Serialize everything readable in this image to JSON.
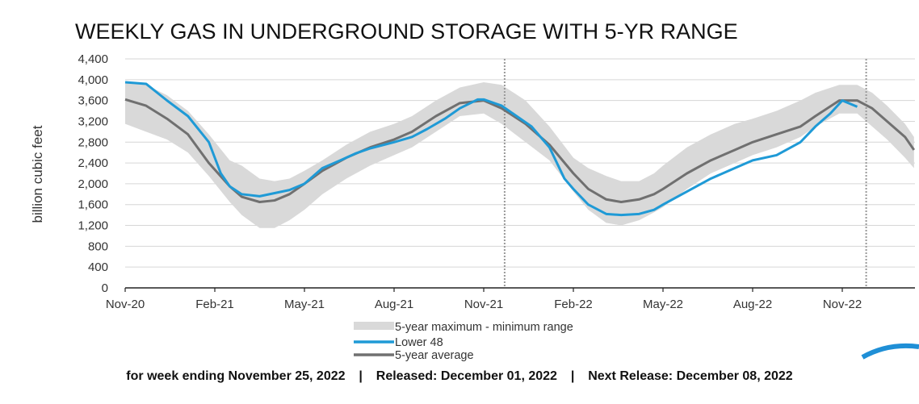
{
  "chart_data": {
    "type": "area",
    "title": "WEEKLY GAS IN UNDERGROUND STORAGE WITH 5-YR RANGE",
    "ylabel": "billion cubic feet",
    "xlabel": "",
    "x_unit": "months since Nov-20",
    "ylim": [
      0,
      4400
    ],
    "yticks": [
      "0",
      "400",
      "800",
      "1,200",
      "1,600",
      "2,000",
      "2,400",
      "2,800",
      "3,200",
      "3,600",
      "4,000",
      "4,400"
    ],
    "xticks": [
      {
        "m": 0,
        "label": "Nov-20"
      },
      {
        "m": 3,
        "label": "Feb-21"
      },
      {
        "m": 6,
        "label": "May-21"
      },
      {
        "m": 9,
        "label": "Aug-21"
      },
      {
        "m": 12,
        "label": "Nov-21"
      },
      {
        "m": 15,
        "label": "Feb-22"
      },
      {
        "m": 18,
        "label": "May-22"
      },
      {
        "m": 21,
        "label": "Aug-22"
      },
      {
        "m": 24,
        "label": "Nov-22"
      }
    ],
    "xlim": [
      0,
      26.4
    ],
    "grid": true,
    "reference_lines_m": [
      12.7,
      24.8
    ],
    "legend": {
      "placement": "bottom-center",
      "entries": [
        "5-year maximum - minimum range",
        "Lower 48",
        "5-year average"
      ]
    },
    "series": [
      {
        "name": "5-year maximum - minimum range",
        "kind": "band",
        "color": "#d9d9d9",
        "points": [
          [
            0,
            3150,
            3950
          ],
          [
            0.7,
            3000,
            3900
          ],
          [
            1.4,
            2850,
            3700
          ],
          [
            2.1,
            2600,
            3400
          ],
          [
            2.8,
            2150,
            2950
          ],
          [
            3.5,
            1650,
            2450
          ],
          [
            3.9,
            1400,
            2350
          ],
          [
            4.5,
            1150,
            2100
          ],
          [
            5.0,
            1150,
            2050
          ],
          [
            5.5,
            1300,
            2100
          ],
          [
            6.0,
            1500,
            2250
          ],
          [
            6.6,
            1800,
            2450
          ],
          [
            7.4,
            2100,
            2750
          ],
          [
            8.2,
            2350,
            3000
          ],
          [
            9.0,
            2550,
            3150
          ],
          [
            9.6,
            2700,
            3300
          ],
          [
            10.4,
            3000,
            3600
          ],
          [
            11.2,
            3300,
            3850
          ],
          [
            12.0,
            3350,
            3950
          ],
          [
            12.6,
            3150,
            3900
          ],
          [
            13.4,
            2800,
            3600
          ],
          [
            14.2,
            2450,
            3100
          ],
          [
            15.0,
            1850,
            2500
          ],
          [
            15.5,
            1500,
            2300
          ],
          [
            16.1,
            1250,
            2150
          ],
          [
            16.6,
            1200,
            2050
          ],
          [
            17.2,
            1300,
            2050
          ],
          [
            17.7,
            1450,
            2200
          ],
          [
            18.0,
            1550,
            2350
          ],
          [
            18.8,
            1900,
            2700
          ],
          [
            19.6,
            2200,
            2950
          ],
          [
            20.4,
            2400,
            3150
          ],
          [
            21.0,
            2550,
            3250
          ],
          [
            21.8,
            2700,
            3400
          ],
          [
            22.6,
            2900,
            3600
          ],
          [
            23.1,
            3100,
            3750
          ],
          [
            23.9,
            3350,
            3900
          ],
          [
            24.5,
            3350,
            3900
          ],
          [
            25.0,
            3100,
            3750
          ],
          [
            25.5,
            2850,
            3500
          ],
          [
            26.1,
            2500,
            3150
          ],
          [
            26.4,
            2300,
            2900
          ]
        ]
      },
      {
        "name": "Lower 48",
        "kind": "line",
        "color": "#1f9ad6",
        "points": [
          [
            0,
            3950
          ],
          [
            0.7,
            3920
          ],
          [
            1.4,
            3600
          ],
          [
            2.1,
            3300
          ],
          [
            2.8,
            2800
          ],
          [
            3.2,
            2200
          ],
          [
            3.5,
            1950
          ],
          [
            3.9,
            1800
          ],
          [
            4.5,
            1760
          ],
          [
            5.0,
            1820
          ],
          [
            5.5,
            1880
          ],
          [
            6.0,
            2000
          ],
          [
            6.6,
            2300
          ],
          [
            7.2,
            2450
          ],
          [
            7.7,
            2580
          ],
          [
            8.2,
            2680
          ],
          [
            9.0,
            2800
          ],
          [
            9.6,
            2900
          ],
          [
            10.1,
            3050
          ],
          [
            10.7,
            3250
          ],
          [
            11.2,
            3450
          ],
          [
            11.8,
            3620
          ],
          [
            12.0,
            3620
          ],
          [
            12.6,
            3500
          ],
          [
            13.1,
            3300
          ],
          [
            13.6,
            3100
          ],
          [
            14.2,
            2700
          ],
          [
            14.7,
            2100
          ],
          [
            15.0,
            1900
          ],
          [
            15.5,
            1600
          ],
          [
            16.1,
            1420
          ],
          [
            16.6,
            1400
          ],
          [
            17.2,
            1420
          ],
          [
            17.7,
            1500
          ],
          [
            18.0,
            1600
          ],
          [
            18.8,
            1850
          ],
          [
            19.6,
            2100
          ],
          [
            20.4,
            2300
          ],
          [
            21.0,
            2450
          ],
          [
            21.8,
            2550
          ],
          [
            22.6,
            2800
          ],
          [
            23.1,
            3100
          ],
          [
            23.6,
            3350
          ],
          [
            24.0,
            3600
          ],
          [
            24.5,
            3480
          ]
        ]
      },
      {
        "name": "5-year average",
        "kind": "line",
        "color": "#707070",
        "points": [
          [
            0,
            3620
          ],
          [
            0.7,
            3500
          ],
          [
            1.4,
            3250
          ],
          [
            2.1,
            2950
          ],
          [
            2.8,
            2400
          ],
          [
            3.5,
            1950
          ],
          [
            3.9,
            1750
          ],
          [
            4.5,
            1650
          ],
          [
            5.0,
            1680
          ],
          [
            5.5,
            1800
          ],
          [
            6.0,
            2000
          ],
          [
            6.6,
            2250
          ],
          [
            7.4,
            2500
          ],
          [
            8.2,
            2700
          ],
          [
            9.0,
            2850
          ],
          [
            9.6,
            3000
          ],
          [
            10.4,
            3300
          ],
          [
            11.2,
            3550
          ],
          [
            12.0,
            3600
          ],
          [
            12.6,
            3450
          ],
          [
            13.4,
            3150
          ],
          [
            14.2,
            2750
          ],
          [
            15.0,
            2200
          ],
          [
            15.5,
            1900
          ],
          [
            16.1,
            1700
          ],
          [
            16.6,
            1650
          ],
          [
            17.2,
            1700
          ],
          [
            17.7,
            1800
          ],
          [
            18.0,
            1900
          ],
          [
            18.8,
            2200
          ],
          [
            19.6,
            2450
          ],
          [
            20.4,
            2650
          ],
          [
            21.0,
            2800
          ],
          [
            21.8,
            2950
          ],
          [
            22.6,
            3100
          ],
          [
            23.1,
            3300
          ],
          [
            23.9,
            3600
          ],
          [
            24.5,
            3600
          ],
          [
            25.0,
            3450
          ],
          [
            25.5,
            3200
          ],
          [
            26.1,
            2900
          ],
          [
            26.4,
            2650
          ]
        ]
      }
    ]
  },
  "footer": {
    "week_ending": "for week ending November 25, 2022",
    "separator": "|",
    "released": "Released: December 01, 2022",
    "next_release": "Next Release: December 08, 2022"
  }
}
